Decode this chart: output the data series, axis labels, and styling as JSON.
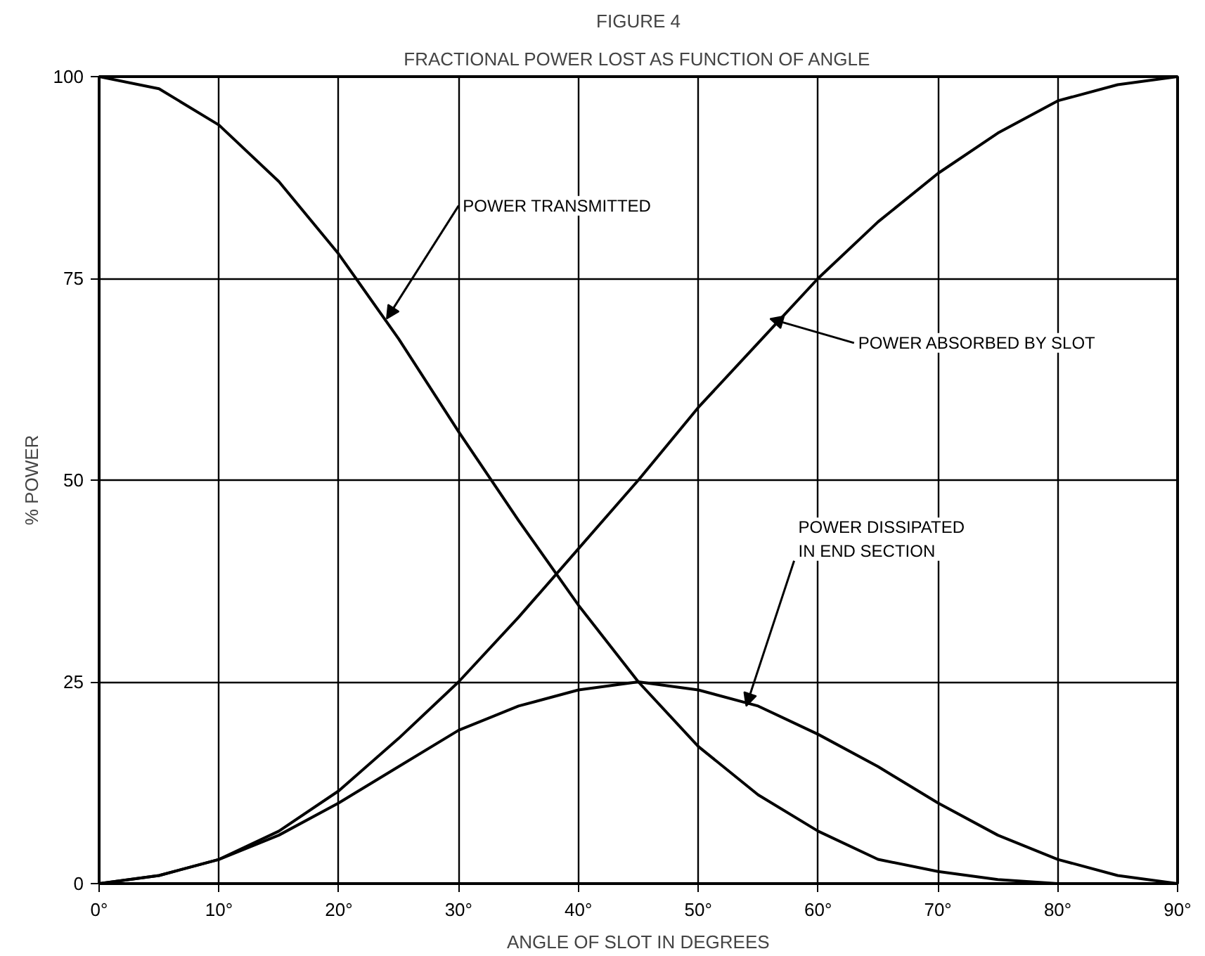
{
  "chart_data": {
    "type": "line",
    "title": "FIGURE 4",
    "subtitle": "FRACTIONAL POWER LOST AS FUNCTION OF ANGLE",
    "xlabel": "ANGLE OF SLOT IN DEGREES",
    "ylabel": "% POWER",
    "x": [
      0,
      5,
      10,
      15,
      20,
      25,
      30,
      35,
      40,
      45,
      50,
      55,
      60,
      65,
      70,
      75,
      80,
      85,
      90
    ],
    "series": [
      {
        "color": "#000000",
        "values": [
          100,
          98.5,
          94,
          87,
          78,
          67.5,
          56,
          45,
          34.5,
          25,
          17,
          11,
          6.5,
          3,
          1.5,
          0.5,
          0,
          0,
          0
        ]
      },
      {
        "color": "#000000",
        "values": [
          0,
          1,
          3,
          6.5,
          11.5,
          18,
          25,
          33,
          41.5,
          50,
          59,
          67,
          75,
          82,
          88,
          93,
          97,
          99,
          100
        ]
      },
      {
        "color": "#000000",
        "values": [
          0,
          1,
          3,
          6,
          10,
          14.5,
          19,
          22,
          24,
          25,
          24,
          22,
          18.5,
          14.5,
          10,
          6,
          3,
          1,
          0
        ]
      }
    ],
    "annotations": [
      {
        "text": "POWER TRANSMITTED",
        "x": 24,
        "y": 70
      },
      {
        "text": "POWER ABSORBED BY SLOT",
        "x": 56,
        "y": 70
      },
      {
        "text": "POWER DISSIPATED\nIN END SECTION",
        "x": 54,
        "y": 22
      }
    ],
    "xlim": [
      0,
      90
    ],
    "ylim": [
      0,
      100
    ],
    "xticks": [
      {
        "value": 0,
        "label": "0°"
      },
      {
        "value": 10,
        "label": "10°"
      },
      {
        "value": 20,
        "label": "20°"
      },
      {
        "value": 30,
        "label": "30°"
      },
      {
        "value": 40,
        "label": "40°"
      },
      {
        "value": 50,
        "label": "50°"
      },
      {
        "value": 60,
        "label": "60°"
      },
      {
        "value": 70,
        "label": "70°"
      },
      {
        "value": 80,
        "label": "80°"
      },
      {
        "value": 90,
        "label": "90°"
      }
    ],
    "yticks": [
      0,
      25,
      50,
      75,
      100
    ],
    "grid": true,
    "line_style": "solid",
    "marker": "none"
  }
}
